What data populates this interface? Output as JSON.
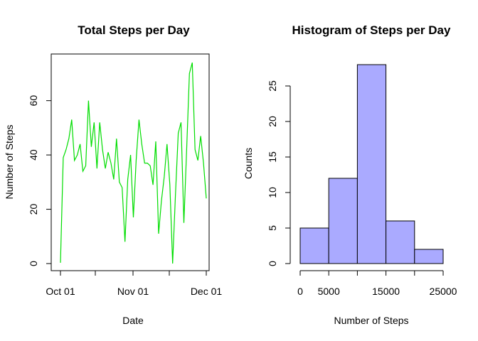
{
  "chart_data": [
    {
      "type": "line",
      "title": "Total Steps per Day",
      "xlabel": "Date",
      "ylabel": "Number of Steps",
      "color": "#00dd00",
      "x_ticks": [
        "Oct 01",
        "Nov 01",
        "Dec 01"
      ],
      "y_ticks": [
        0,
        20,
        40,
        60
      ],
      "ylim": [
        0,
        74
      ],
      "series": [
        {
          "values": [
            0.3,
            39,
            42,
            46,
            53,
            38,
            40,
            44,
            34,
            36,
            60,
            43,
            52,
            35,
            52,
            42,
            35,
            41,
            37,
            31,
            46,
            30,
            28,
            8,
            31,
            40,
            17,
            38,
            53,
            44,
            37,
            37,
            36,
            29,
            45,
            11,
            23,
            32,
            44,
            29,
            0,
            25,
            48,
            52,
            15,
            42,
            70,
            74,
            42,
            38,
            47,
            37,
            24
          ]
        }
      ]
    },
    {
      "type": "bar",
      "title": "Histogram of Steps per Day",
      "xlabel": "Number of Steps",
      "ylabel": "Counts",
      "color": "#aaaaff",
      "bin_edges": [
        0,
        5000,
        10000,
        15000,
        20000,
        25000
      ],
      "values": [
        5,
        12,
        28,
        6,
        2
      ],
      "x_ticks": [
        0,
        5000,
        15000,
        25000
      ],
      "y_ticks": [
        0,
        5,
        10,
        15,
        20,
        25
      ],
      "ylim": [
        0,
        28
      ]
    }
  ]
}
